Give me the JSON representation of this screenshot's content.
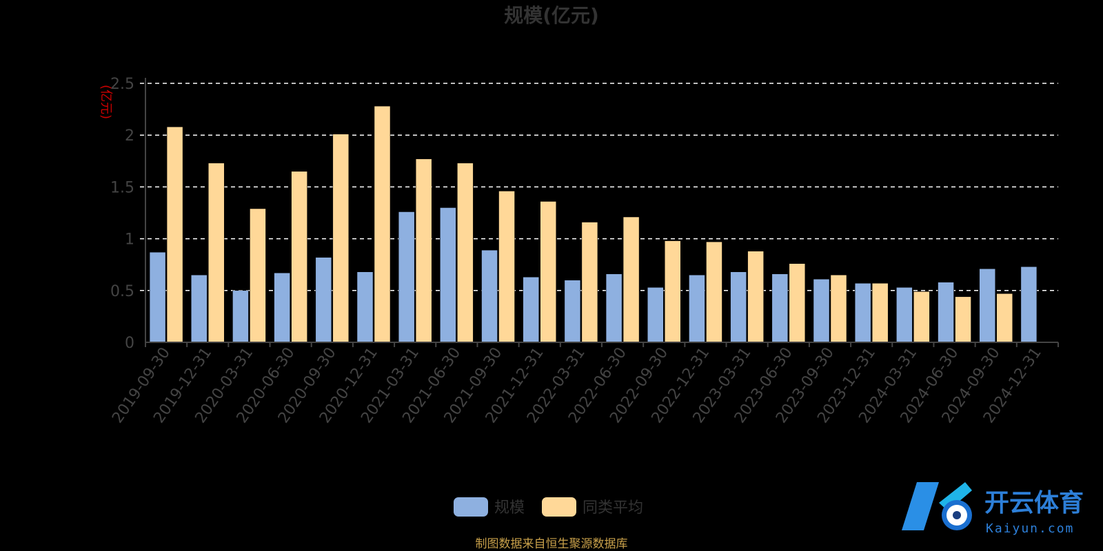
{
  "chart_data": {
    "type": "bar",
    "title": "规模(亿元)",
    "ylabel": "(亿元)",
    "xlabel": "",
    "ylim": [
      0,
      2.5
    ],
    "yticks": [
      "0",
      "0.5",
      "1",
      "1.5",
      "2",
      "2.5"
    ],
    "grid": true,
    "legend_position": "bottom-center",
    "categories": [
      "2019-09-30",
      "2019-12-31",
      "2020-03-31",
      "2020-06-30",
      "2020-09-30",
      "2020-12-31",
      "2021-03-31",
      "2021-06-30",
      "2021-09-30",
      "2021-12-31",
      "2022-03-31",
      "2022-06-30",
      "2022-09-30",
      "2022-12-31",
      "2023-03-31",
      "2023-06-30",
      "2023-09-30",
      "2023-12-31",
      "2024-03-31",
      "2024-06-30",
      "2024-09-30",
      "2024-12-31"
    ],
    "series": [
      {
        "name": "规模",
        "color": "#8eb0e0",
        "values": [
          0.87,
          0.65,
          0.5,
          0.67,
          0.82,
          0.68,
          1.26,
          1.3,
          0.89,
          0.63,
          0.6,
          0.66,
          0.53,
          0.65,
          0.68,
          0.66,
          0.61,
          0.57,
          0.53,
          0.58,
          0.71,
          0.73
        ]
      },
      {
        "name": "同类平均",
        "color": "#ffd898",
        "values": [
          2.08,
          1.73,
          1.29,
          1.65,
          2.01,
          2.28,
          1.77,
          1.73,
          1.46,
          1.36,
          1.16,
          1.21,
          0.98,
          0.97,
          0.88,
          0.76,
          0.65,
          0.57,
          0.49,
          0.44,
          0.47,
          null
        ]
      }
    ]
  },
  "footer": {
    "source": "制图数据来自恒生聚源数据库"
  },
  "watermark": {
    "brand": "开云体育",
    "domain": "Kaiyun.com"
  }
}
